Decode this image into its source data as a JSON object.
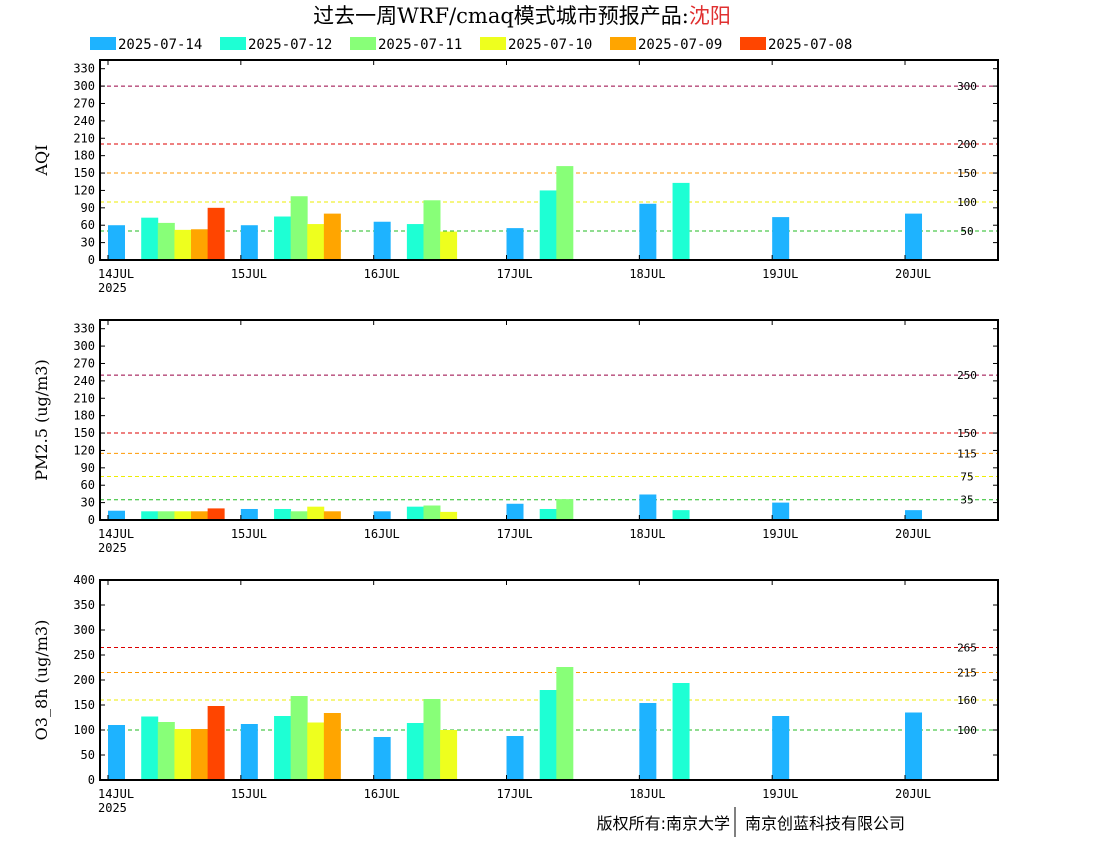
{
  "title": {
    "prefix": "过去一周WRF/cmaq模式城市预报产品:",
    "city": "沈阳",
    "city_color": "#e03030"
  },
  "legend": [
    {
      "label": "2025-07-14",
      "color": "#1eb3ff"
    },
    {
      "label": "2025-07-12",
      "color": "#1effd4"
    },
    {
      "label": "2025-07-11",
      "color": "#88ff78"
    },
    {
      "label": "2025-07-10",
      "color": "#eeff1e"
    },
    {
      "label": "2025-07-09",
      "color": "#ffa500"
    },
    {
      "label": "2025-07-08",
      "color": "#ff4500"
    }
  ],
  "footer": {
    "left": "版权所有:南京大学",
    "right": "南京创蓝科技有限公司"
  },
  "chart_data": [
    {
      "type": "bar",
      "ylabel": "AQI",
      "ylim": [
        0,
        345
      ],
      "yticks": [
        0,
        30,
        60,
        90,
        120,
        150,
        180,
        210,
        240,
        270,
        300,
        330
      ],
      "xlim": [
        0,
        6.7
      ],
      "xticks": [
        {
          "x": 0,
          "label": "14JUL",
          "sublabel": "2025"
        },
        {
          "x": 1,
          "label": "15JUL"
        },
        {
          "x": 2,
          "label": "16JUL"
        },
        {
          "x": 3,
          "label": "17JUL"
        },
        {
          "x": 4,
          "label": "18JUL"
        },
        {
          "x": 5,
          "label": "19JUL"
        },
        {
          "x": 6,
          "label": "20JUL"
        }
      ],
      "thresholds": [
        {
          "value": 50,
          "label": "50",
          "color": "#22bb22"
        },
        {
          "value": 100,
          "label": "100",
          "color": "#eeee00"
        },
        {
          "value": 150,
          "label": "150",
          "color": "#ff9900"
        },
        {
          "value": 200,
          "label": "200",
          "color": "#dd0000"
        },
        {
          "value": 300,
          "label": "300",
          "color": "#990044"
        }
      ],
      "bars": [
        {
          "x": 0.0,
          "value": 60,
          "series": 0
        },
        {
          "x": 0.25,
          "value": 73,
          "series": 1
        },
        {
          "x": 0.375,
          "value": 64,
          "series": 2
        },
        {
          "x": 0.5,
          "value": 52,
          "series": 3
        },
        {
          "x": 0.625,
          "value": 53,
          "series": 4
        },
        {
          "x": 0.75,
          "value": 90,
          "series": 5
        },
        {
          "x": 1.0,
          "value": 60,
          "series": 0
        },
        {
          "x": 1.25,
          "value": 75,
          "series": 1
        },
        {
          "x": 1.375,
          "value": 110,
          "series": 2
        },
        {
          "x": 1.5,
          "value": 62,
          "series": 3
        },
        {
          "x": 1.625,
          "value": 80,
          "series": 4
        },
        {
          "x": 2.0,
          "value": 66,
          "series": 0
        },
        {
          "x": 2.25,
          "value": 62,
          "series": 1
        },
        {
          "x": 2.375,
          "value": 103,
          "series": 2
        },
        {
          "x": 2.5,
          "value": 49,
          "series": 3
        },
        {
          "x": 3.0,
          "value": 55,
          "series": 0
        },
        {
          "x": 3.25,
          "value": 120,
          "series": 1
        },
        {
          "x": 3.375,
          "value": 162,
          "series": 2
        },
        {
          "x": 4.0,
          "value": 97,
          "series": 0
        },
        {
          "x": 4.25,
          "value": 133,
          "series": 1
        },
        {
          "x": 5.0,
          "value": 74,
          "series": 0
        },
        {
          "x": 6.0,
          "value": 80,
          "series": 0
        }
      ]
    },
    {
      "type": "bar",
      "ylabel": "PM2.5 (ug/m3)",
      "ylim": [
        0,
        345
      ],
      "yticks": [
        0,
        30,
        60,
        90,
        120,
        150,
        180,
        210,
        240,
        270,
        300,
        330
      ],
      "xlim": [
        0,
        6.7
      ],
      "xticks": [
        {
          "x": 0,
          "label": "14JUL",
          "sublabel": "2025"
        },
        {
          "x": 1,
          "label": "15JUL"
        },
        {
          "x": 2,
          "label": "16JUL"
        },
        {
          "x": 3,
          "label": "17JUL"
        },
        {
          "x": 4,
          "label": "18JUL"
        },
        {
          "x": 5,
          "label": "19JUL"
        },
        {
          "x": 6,
          "label": "20JUL"
        }
      ],
      "thresholds": [
        {
          "value": 35,
          "label": "35",
          "color": "#22bb22"
        },
        {
          "value": 75,
          "label": "75",
          "color": "#eeee00"
        },
        {
          "value": 115,
          "label": "115",
          "color": "#ff9900"
        },
        {
          "value": 150,
          "label": "150",
          "color": "#dd0000"
        },
        {
          "value": 250,
          "label": "250",
          "color": "#990044"
        }
      ],
      "bars": [
        {
          "x": 0.0,
          "value": 16,
          "series": 0
        },
        {
          "x": 0.25,
          "value": 15,
          "series": 1
        },
        {
          "x": 0.375,
          "value": 15,
          "series": 2
        },
        {
          "x": 0.5,
          "value": 15,
          "series": 3
        },
        {
          "x": 0.625,
          "value": 15,
          "series": 4
        },
        {
          "x": 0.75,
          "value": 20,
          "series": 5
        },
        {
          "x": 1.0,
          "value": 19,
          "series": 0
        },
        {
          "x": 1.25,
          "value": 19,
          "series": 1
        },
        {
          "x": 1.375,
          "value": 15,
          "series": 2
        },
        {
          "x": 1.5,
          "value": 23,
          "series": 3
        },
        {
          "x": 1.625,
          "value": 15,
          "series": 4
        },
        {
          "x": 2.0,
          "value": 15,
          "series": 0
        },
        {
          "x": 2.25,
          "value": 23,
          "series": 1
        },
        {
          "x": 2.375,
          "value": 25,
          "series": 2
        },
        {
          "x": 2.5,
          "value": 14,
          "series": 3
        },
        {
          "x": 3.0,
          "value": 28,
          "series": 0
        },
        {
          "x": 3.25,
          "value": 19,
          "series": 1
        },
        {
          "x": 3.375,
          "value": 36,
          "series": 2
        },
        {
          "x": 4.0,
          "value": 44,
          "series": 0
        },
        {
          "x": 4.25,
          "value": 17,
          "series": 1
        },
        {
          "x": 5.0,
          "value": 30,
          "series": 0
        },
        {
          "x": 6.0,
          "value": 17,
          "series": 0
        }
      ]
    },
    {
      "type": "bar",
      "ylabel": "O3_8h (ug/m3)",
      "ylim": [
        0,
        400
      ],
      "yticks": [
        0,
        50,
        100,
        150,
        200,
        250,
        300,
        350,
        400
      ],
      "xlim": [
        0,
        6.7
      ],
      "xticks": [
        {
          "x": 0,
          "label": "14JUL",
          "sublabel": "2025"
        },
        {
          "x": 1,
          "label": "15JUL"
        },
        {
          "x": 2,
          "label": "16JUL"
        },
        {
          "x": 3,
          "label": "17JUL"
        },
        {
          "x": 4,
          "label": "18JUL"
        },
        {
          "x": 5,
          "label": "19JUL"
        },
        {
          "x": 6,
          "label": "20JUL"
        }
      ],
      "thresholds": [
        {
          "value": 100,
          "label": "100",
          "color": "#22bb22"
        },
        {
          "value": 160,
          "label": "160",
          "color": "#eeee00"
        },
        {
          "value": 215,
          "label": "215",
          "color": "#ff9900"
        },
        {
          "value": 265,
          "label": "265",
          "color": "#dd0000"
        }
      ],
      "bars": [
        {
          "x": 0.0,
          "value": 110,
          "series": 0
        },
        {
          "x": 0.25,
          "value": 127,
          "series": 1
        },
        {
          "x": 0.375,
          "value": 116,
          "series": 2
        },
        {
          "x": 0.5,
          "value": 102,
          "series": 3
        },
        {
          "x": 0.625,
          "value": 102,
          "series": 4
        },
        {
          "x": 0.75,
          "value": 148,
          "series": 5
        },
        {
          "x": 1.0,
          "value": 112,
          "series": 0
        },
        {
          "x": 1.25,
          "value": 128,
          "series": 1
        },
        {
          "x": 1.375,
          "value": 168,
          "series": 2
        },
        {
          "x": 1.5,
          "value": 115,
          "series": 3
        },
        {
          "x": 1.625,
          "value": 134,
          "series": 4
        },
        {
          "x": 2.0,
          "value": 86,
          "series": 0
        },
        {
          "x": 2.25,
          "value": 114,
          "series": 1
        },
        {
          "x": 2.375,
          "value": 162,
          "series": 2
        },
        {
          "x": 2.5,
          "value": 100,
          "series": 3
        },
        {
          "x": 3.0,
          "value": 88,
          "series": 0
        },
        {
          "x": 3.25,
          "value": 180,
          "series": 1
        },
        {
          "x": 3.375,
          "value": 226,
          "series": 2
        },
        {
          "x": 4.0,
          "value": 154,
          "series": 0
        },
        {
          "x": 4.25,
          "value": 194,
          "series": 1
        },
        {
          "x": 5.0,
          "value": 128,
          "series": 0
        },
        {
          "x": 6.0,
          "value": 135,
          "series": 0
        }
      ]
    }
  ]
}
